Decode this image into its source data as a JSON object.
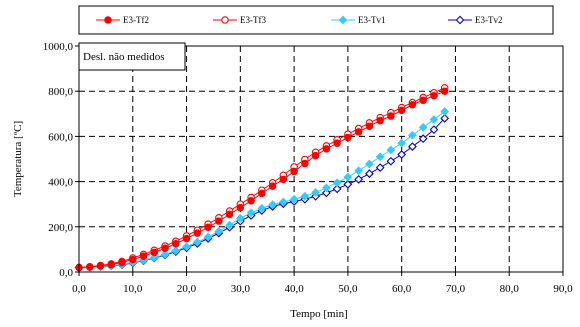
{
  "chart_data": {
    "type": "line",
    "xlabel": "Tempo [min]",
    "ylabel": "Temperatura [ºC]",
    "xlim": [
      0,
      90
    ],
    "ylim": [
      0,
      1000
    ],
    "x_ticks": [
      "0,0",
      "10,0",
      "20,0",
      "30,0",
      "40,0",
      "50,0",
      "60,0",
      "70,0",
      "80,0",
      "90,0"
    ],
    "y_ticks": [
      "0,0",
      "200,0",
      "400,0",
      "600,0",
      "800,0",
      "1000,0"
    ],
    "grid": true,
    "legend_position": "top",
    "annotation": "Desl. não medidos",
    "series": [
      {
        "name": "E3-Tf2",
        "color": "#ff0000",
        "marker": "filled-circle",
        "x": [
          0,
          2,
          4,
          6,
          8,
          10,
          12,
          14,
          16,
          18,
          20,
          22,
          24,
          26,
          28,
          30,
          32,
          34,
          36,
          38,
          40,
          42,
          44,
          46,
          48,
          50,
          52,
          54,
          56,
          58,
          60,
          62,
          64,
          66,
          68
        ],
        "y": [
          20,
          22,
          27,
          33,
          42,
          55,
          70,
          87,
          105,
          125,
          148,
          172,
          198,
          225,
          255,
          285,
          315,
          348,
          380,
          410,
          445,
          480,
          515,
          545,
          570,
          595,
          620,
          645,
          670,
          690,
          715,
          740,
          760,
          780,
          800
        ]
      },
      {
        "name": "E3-Tf3",
        "color": "#ff0000",
        "marker": "open-circle",
        "x": [
          0,
          2,
          4,
          6,
          8,
          10,
          12,
          14,
          16,
          18,
          20,
          22,
          24,
          26,
          28,
          30,
          32,
          34,
          36,
          38,
          40,
          42,
          44,
          46,
          48,
          50,
          52,
          54,
          56,
          58,
          60,
          62,
          64,
          66,
          68
        ],
        "y": [
          20,
          23,
          29,
          36,
          47,
          62,
          78,
          96,
          115,
          136,
          160,
          185,
          212,
          240,
          270,
          300,
          330,
          362,
          395,
          428,
          465,
          498,
          530,
          558,
          585,
          610,
          635,
          660,
          683,
          705,
          728,
          750,
          772,
          793,
          815
        ]
      },
      {
        "name": "E3-Tv1",
        "color": "#33ccff",
        "marker": "filled-diamond",
        "x": [
          0,
          2,
          4,
          6,
          8,
          10,
          12,
          14,
          16,
          18,
          20,
          22,
          24,
          26,
          28,
          30,
          32,
          34,
          36,
          38,
          40,
          42,
          44,
          46,
          48,
          50,
          52,
          54,
          56,
          58,
          60,
          62,
          64,
          66,
          68
        ],
        "y": [
          20,
          21,
          24,
          28,
          34,
          42,
          52,
          64,
          78,
          94,
          112,
          132,
          155,
          180,
          208,
          238,
          262,
          282,
          298,
          310,
          322,
          335,
          352,
          372,
          395,
          420,
          448,
          478,
          510,
          540,
          570,
          605,
          640,
          675,
          710
        ]
      },
      {
        "name": "E3-Tv2",
        "color": "#0000cc",
        "marker": "open-diamond",
        "x": [
          0,
          2,
          4,
          6,
          8,
          10,
          12,
          14,
          16,
          18,
          20,
          22,
          24,
          26,
          28,
          30,
          32,
          34,
          36,
          38,
          40,
          42,
          44,
          46,
          48,
          50,
          52,
          54,
          56,
          58,
          60,
          62,
          64,
          66,
          68
        ],
        "y": [
          20,
          21,
          23,
          27,
          32,
          40,
          50,
          62,
          75,
          90,
          107,
          126,
          148,
          172,
          198,
          225,
          250,
          272,
          290,
          302,
          312,
          322,
          335,
          350,
          368,
          388,
          410,
          435,
          462,
          490,
          520,
          555,
          590,
          630,
          680
        ]
      }
    ]
  }
}
